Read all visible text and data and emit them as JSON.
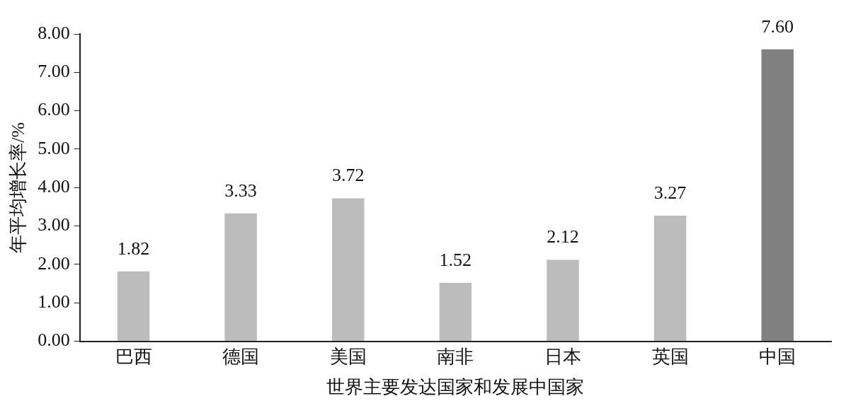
{
  "chart_data": {
    "type": "bar",
    "xlabel": "世界主要发达国家和发展中国家",
    "ylabel": "年平均增长率/%",
    "categories": [
      "巴西",
      "德国",
      "美国",
      "南非",
      "日本",
      "英国",
      "中国"
    ],
    "values": [
      1.82,
      3.33,
      3.72,
      1.52,
      2.12,
      3.27,
      7.6
    ],
    "colors": [
      "#bcbcbc",
      "#bcbcbc",
      "#bcbcbc",
      "#bcbcbc",
      "#bcbcbc",
      "#bcbcbc",
      "#808080"
    ],
    "ylim": [
      0,
      8
    ],
    "yticks": [
      {
        "value": 0,
        "label": "0.00"
      },
      {
        "value": 1,
        "label": "1.00"
      },
      {
        "value": 2,
        "label": "2.00"
      },
      {
        "value": 3,
        "label": "3.00"
      },
      {
        "value": 4,
        "label": "4.00"
      },
      {
        "value": 5,
        "label": "5.00"
      },
      {
        "value": 6,
        "label": "6.00"
      },
      {
        "value": 7,
        "label": "7.00"
      },
      {
        "value": 8,
        "label": "8.00"
      }
    ],
    "value_labels": [
      "1.82",
      "3.33",
      "3.72",
      "1.52",
      "2.12",
      "3.27",
      "7.60"
    ],
    "grid": false,
    "legend": false
  }
}
